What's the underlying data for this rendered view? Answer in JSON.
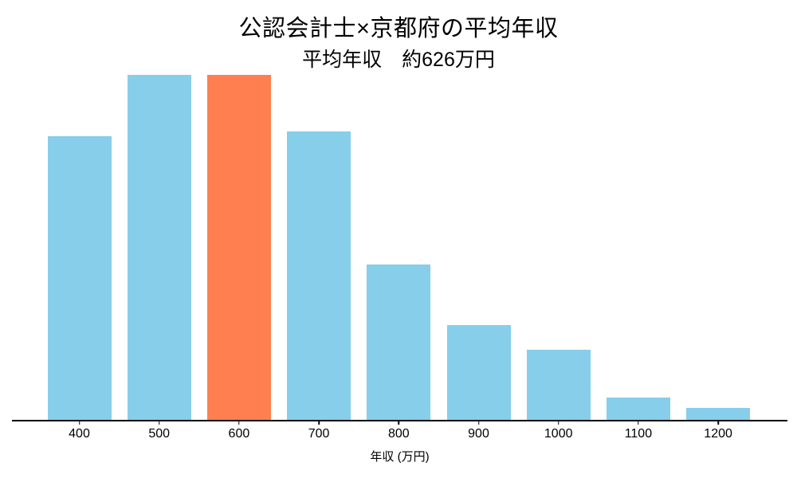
{
  "chart_data": {
    "type": "bar",
    "title": "公認会計士×京都府の平均年収",
    "subtitle": "平均年収　約626万円",
    "xlabel": "年収 (万円)",
    "ylabel": "",
    "categories": [
      "400",
      "500",
      "600",
      "700",
      "800",
      "900",
      "1000",
      "1100",
      "1200"
    ],
    "values": [
      0.822,
      1.0,
      1.0,
      0.836,
      0.45,
      0.275,
      0.203,
      0.065,
      0.035
    ],
    "values_unit": "relative frequency (fraction of tallest bar; chart shows no y-axis)",
    "highlighted_category": "600",
    "average_income_text": "約626万円",
    "grid": false,
    "legend": "none",
    "ylim": [
      0,
      1.05
    ],
    "colors": {
      "bar": "#87CEEB",
      "highlight": "#FF7F50",
      "axis": "#000000",
      "text": "#000000",
      "background": "#FFFFFF"
    }
  }
}
